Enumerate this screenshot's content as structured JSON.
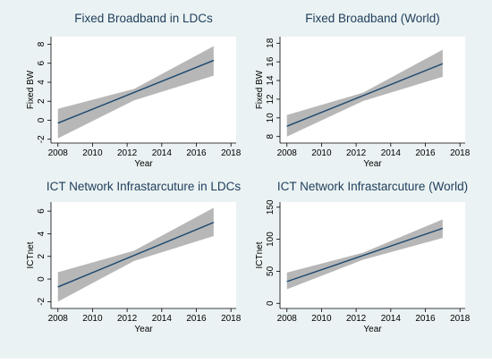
{
  "colors": {
    "outer_bg": "#eaf2f3",
    "plot_bg": "#ffffff",
    "line": "#1a476f",
    "band": "#b7b7b7",
    "axis": "#000000",
    "title": "#1e3d5a"
  },
  "chart_data": [
    {
      "type": "line",
      "title": "Fixed Broadband in LDCs",
      "xlabel": "Year",
      "ylabel": "Fixed BW",
      "xlim": [
        2007.6,
        2018.3
      ],
      "ylim": [
        -2.4,
        8.8
      ],
      "xticks": [
        2008,
        2010,
        2012,
        2014,
        2016,
        2018
      ],
      "xtick_labels": [
        "2008",
        "2010",
        "2012",
        "2014",
        "2016",
        "2018"
      ],
      "yticks": [
        -2,
        0,
        2,
        4,
        6,
        8
      ],
      "ytick_labels": [
        "-2",
        "0",
        "2",
        "4",
        "6",
        "8"
      ],
      "grid": false,
      "legend": "none",
      "series": [
        {
          "x": [
            2008,
            2017
          ],
          "y": [
            -0.3,
            6.3
          ],
          "ci_low": [
            -1.9,
            4.7
          ],
          "ci_high": [
            1.2,
            7.8
          ],
          "ci_mid_x": 2012.4,
          "ci_mid_low": 2.1,
          "ci_mid_high": 3.3
        }
      ]
    },
    {
      "type": "line",
      "title": "Fixed Broadband (World)",
      "xlabel": "Year",
      "ylabel": "Fixed BW",
      "xlim": [
        2007.6,
        2018.3
      ],
      "ylim": [
        7.3,
        18.7
      ],
      "xticks": [
        2008,
        2010,
        2012,
        2014,
        2016,
        2018
      ],
      "xtick_labels": [
        "2008",
        "2010",
        "2012",
        "2014",
        "2016",
        "2018"
      ],
      "yticks": [
        8,
        10,
        12,
        14,
        16,
        18
      ],
      "ytick_labels": [
        "8",
        "10",
        "12",
        "14",
        "16",
        "18"
      ],
      "grid": false,
      "legend": "none",
      "series": [
        {
          "x": [
            2008,
            2017
          ],
          "y": [
            9.1,
            15.8
          ],
          "ci_low": [
            8.0,
            14.4
          ],
          "ci_high": [
            10.3,
            17.3
          ],
          "ci_mid_x": 2012.4,
          "ci_mid_low": 11.8,
          "ci_mid_high": 12.7
        }
      ]
    },
    {
      "type": "line",
      "title": "ICT Network Infrastarcuture in LDCs",
      "xlabel": "Year",
      "ylabel": "ICTnet",
      "xlim": [
        2007.6,
        2018.3
      ],
      "ylim": [
        -2.6,
        6.8
      ],
      "xticks": [
        2008,
        2010,
        2012,
        2014,
        2016,
        2018
      ],
      "xtick_labels": [
        "2008",
        "2010",
        "2012",
        "2014",
        "2016",
        "2018"
      ],
      "yticks": [
        -2,
        0,
        2,
        4,
        6
      ],
      "ytick_labels": [
        "-2",
        "0",
        "2",
        "4",
        "6"
      ],
      "grid": false,
      "legend": "none",
      "series": [
        {
          "x": [
            2008,
            2017
          ],
          "y": [
            -0.7,
            5.0
          ],
          "ci_low": [
            -2.0,
            3.8
          ],
          "ci_high": [
            0.6,
            6.3
          ],
          "ci_mid_x": 2012.4,
          "ci_mid_low": 1.6,
          "ci_mid_high": 2.5
        }
      ]
    },
    {
      "type": "line",
      "title": "ICT Network Infrastarcuture (World)",
      "xlabel": "Year",
      "ylabel": "ICTnet",
      "xlim": [
        2007.6,
        2018.3
      ],
      "ylim": [
        -8,
        158
      ],
      "xticks": [
        2008,
        2010,
        2012,
        2014,
        2016,
        2018
      ],
      "xtick_labels": [
        "2008",
        "2010",
        "2012",
        "2014",
        "2016",
        "2018"
      ],
      "yticks": [
        0,
        50,
        100,
        150
      ],
      "ytick_labels": [
        "0",
        "50",
        "100",
        "150"
      ],
      "grid": false,
      "legend": "none",
      "series": [
        {
          "x": [
            2008,
            2017
          ],
          "y": [
            34,
            117
          ],
          "ci_low": [
            22,
            102
          ],
          "ci_high": [
            48,
            131
          ],
          "ci_mid_x": 2012.4,
          "ci_mid_low": 68,
          "ci_mid_high": 79
        }
      ]
    }
  ]
}
